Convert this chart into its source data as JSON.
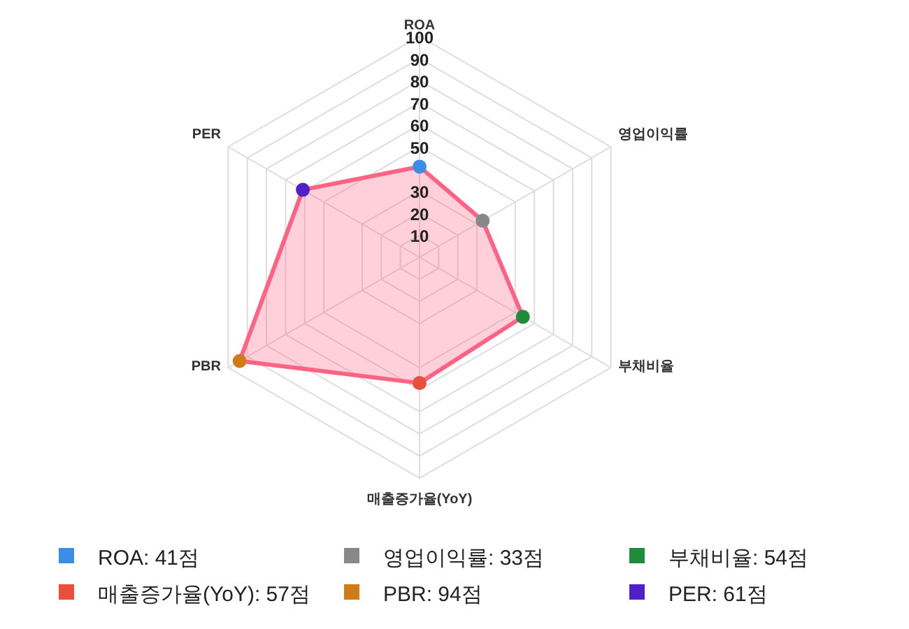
{
  "chart_data": {
    "type": "radar",
    "categories": [
      "ROA",
      "영업이익률",
      "부채비율",
      "매출증가율(YoY)",
      "PBR",
      "PER"
    ],
    "series": [
      {
        "color": "#ff6384",
        "values": [
          41,
          33,
          54,
          57,
          94,
          61
        ],
        "colors": [
          "#3a8ee6",
          "#888888",
          "#1e8c3a",
          "#e8503a",
          "#d07a18",
          "#5020c8"
        ]
      }
    ],
    "annotations": [
      "ROA: 41점",
      "영업이익률: 33점",
      "부채비율: 54점",
      "매출증가율(YoY): 57점",
      "PBR: 94점",
      "PER: 61점"
    ],
    "ylim": [
      0,
      100
    ],
    "yticks": [
      10,
      20,
      30,
      50,
      60,
      70,
      80,
      90,
      100
    ],
    "grid": true,
    "marker": "circle"
  }
}
